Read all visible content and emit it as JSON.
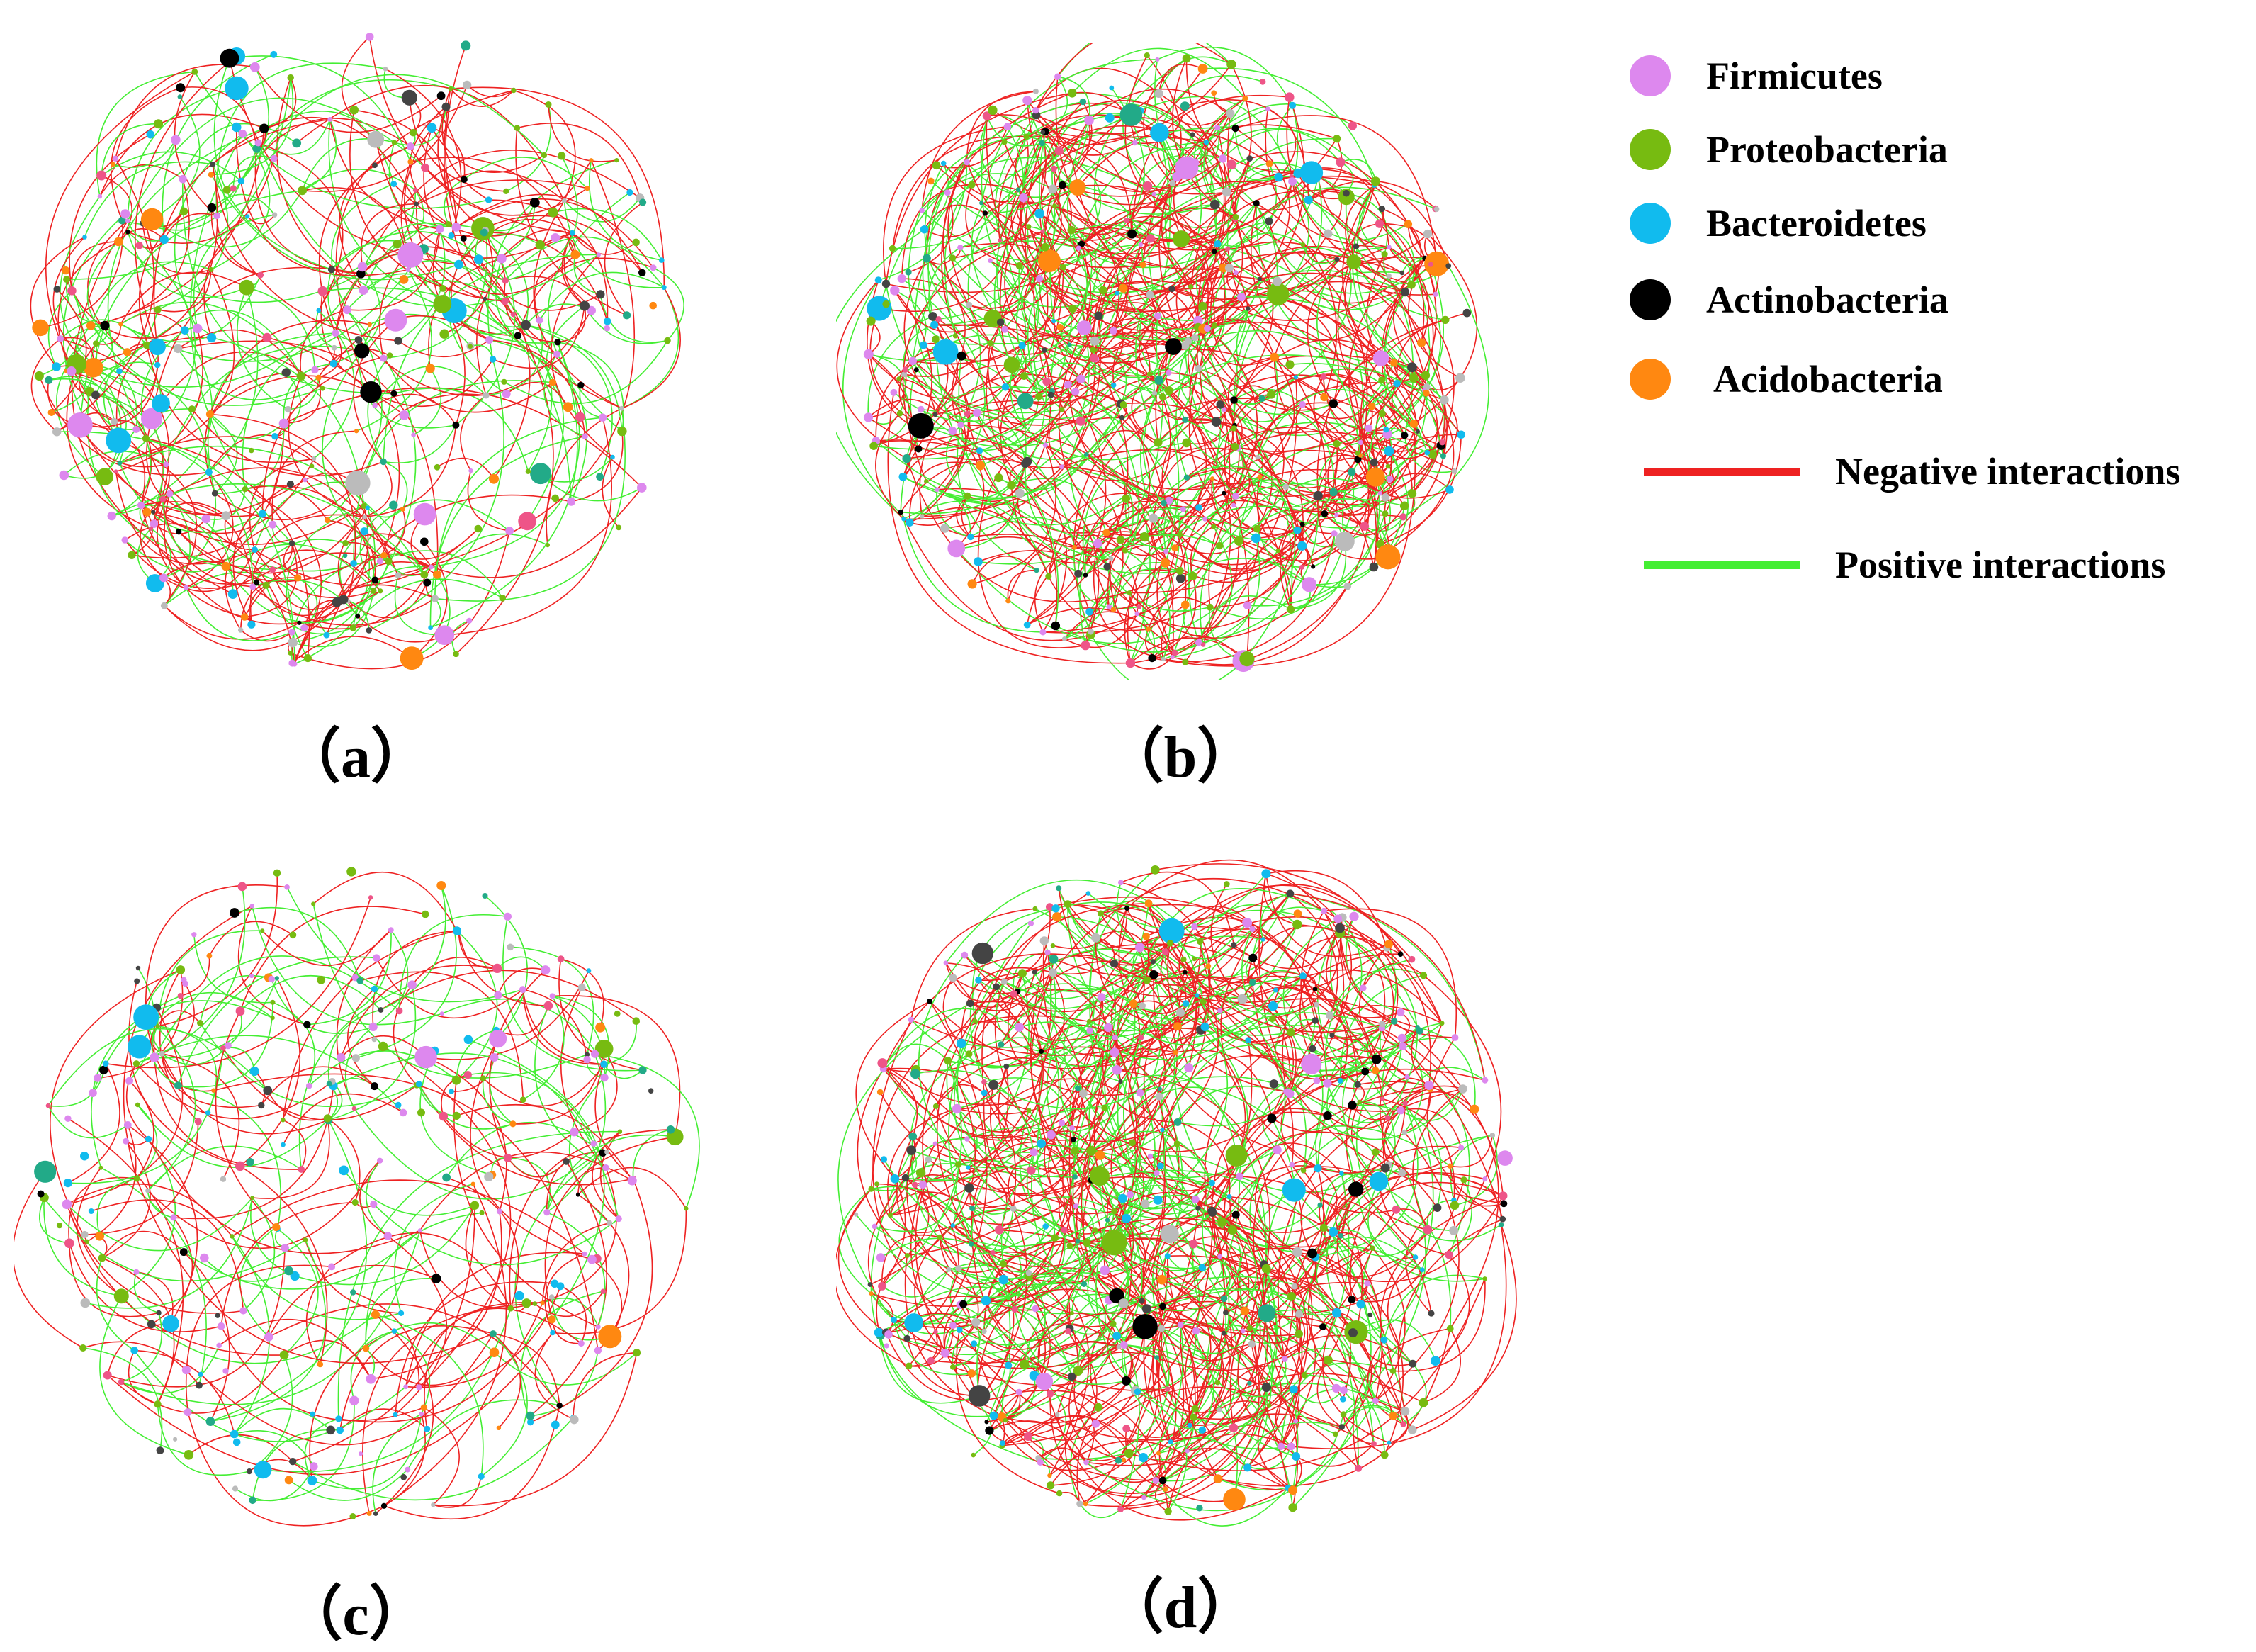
{
  "panels": [
    {
      "id": "a",
      "label": "（a）"
    },
    {
      "id": "b",
      "label": "（b）"
    },
    {
      "id": "c",
      "label": "（c）"
    },
    {
      "id": "d",
      "label": "（d）"
    }
  ],
  "legend": {
    "phyla": [
      {
        "name": "Firmicutes",
        "color": "#dd88ee"
      },
      {
        "name": "Proteobacteria",
        "color": "#77bb11"
      },
      {
        "name": "Bacteroidetes",
        "color": "#11bbee"
      },
      {
        "name": "Actinobacteria",
        "color": "#000000"
      },
      {
        "name": "Acidobacteria",
        "color": "#ff8811"
      }
    ],
    "interactions": [
      {
        "name": "Negative interactions",
        "color": "#ee2222"
      },
      {
        "name": "Positive interactions",
        "color": "#44ee33"
      }
    ]
  },
  "colors": {
    "other_node": "#bbbbbb",
    "teal_node": "#22aa88",
    "pink_node": "#ee5588",
    "dark_node": "#444444"
  }
}
